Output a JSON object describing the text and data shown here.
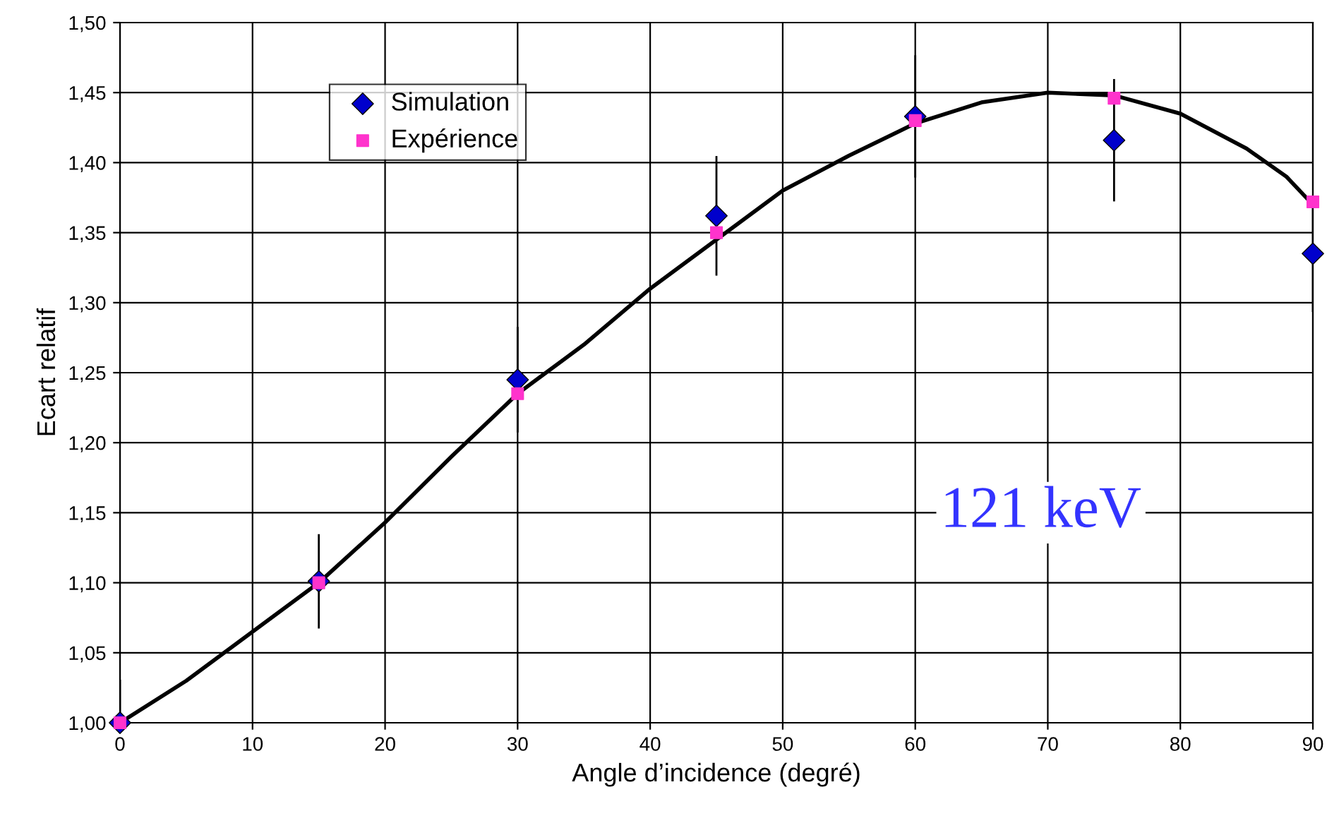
{
  "chart_data": {
    "type": "scatter",
    "xlabel": "Angle d’incidence (degré)",
    "ylabel": "Ecart relatif",
    "x": [
      0,
      15,
      30,
      45,
      60,
      75,
      90
    ],
    "series": [
      {
        "name": "Simulation",
        "color": "#0000cc",
        "marker": "diamond",
        "values": [
          1.0,
          1.101,
          1.245,
          1.362,
          1.433,
          1.416,
          1.335
        ],
        "errors": [
          0.03,
          0.033,
          0.037,
          0.042,
          0.043,
          0.043,
          0.041
        ]
      },
      {
        "name": "Expérience",
        "color": "#ff33cc",
        "marker": "square",
        "values": [
          1.0,
          1.1,
          1.235,
          1.35,
          1.43,
          1.446,
          1.372
        ]
      },
      {
        "type": "line",
        "color": "#000000",
        "marker": "none",
        "x": [
          0,
          5,
          10,
          15,
          20,
          25,
          30,
          35,
          40,
          45,
          50,
          55,
          60,
          65,
          70,
          75,
          80,
          85,
          88,
          90
        ],
        "values": [
          1.0,
          1.03,
          1.065,
          1.1,
          1.143,
          1.19,
          1.235,
          1.27,
          1.31,
          1.345,
          1.38,
          1.405,
          1.428,
          1.443,
          1.45,
          1.448,
          1.435,
          1.41,
          1.39,
          1.37
        ]
      }
    ],
    "annotations": [
      "121 keV"
    ],
    "xlim": [
      0,
      90
    ],
    "xticks": [
      0,
      10,
      20,
      30,
      40,
      50,
      60,
      70,
      80,
      90
    ],
    "ylim": [
      1.0,
      1.5
    ],
    "yticks": [
      {
        "value": 1.0,
        "label": "1,00"
      },
      {
        "value": 1.05,
        "label": "1,05"
      },
      {
        "value": 1.1,
        "label": "1,10"
      },
      {
        "value": 1.15,
        "label": "1,15"
      },
      {
        "value": 1.2,
        "label": "1,20"
      },
      {
        "value": 1.25,
        "label": "1,25"
      },
      {
        "value": 1.3,
        "label": "1,30"
      },
      {
        "value": 1.35,
        "label": "1,35"
      },
      {
        "value": 1.4,
        "label": "1,40"
      },
      {
        "value": 1.45,
        "label": "1,45"
      },
      {
        "value": 1.5,
        "label": "1,50"
      }
    ],
    "grid": true,
    "legend": "top left"
  }
}
